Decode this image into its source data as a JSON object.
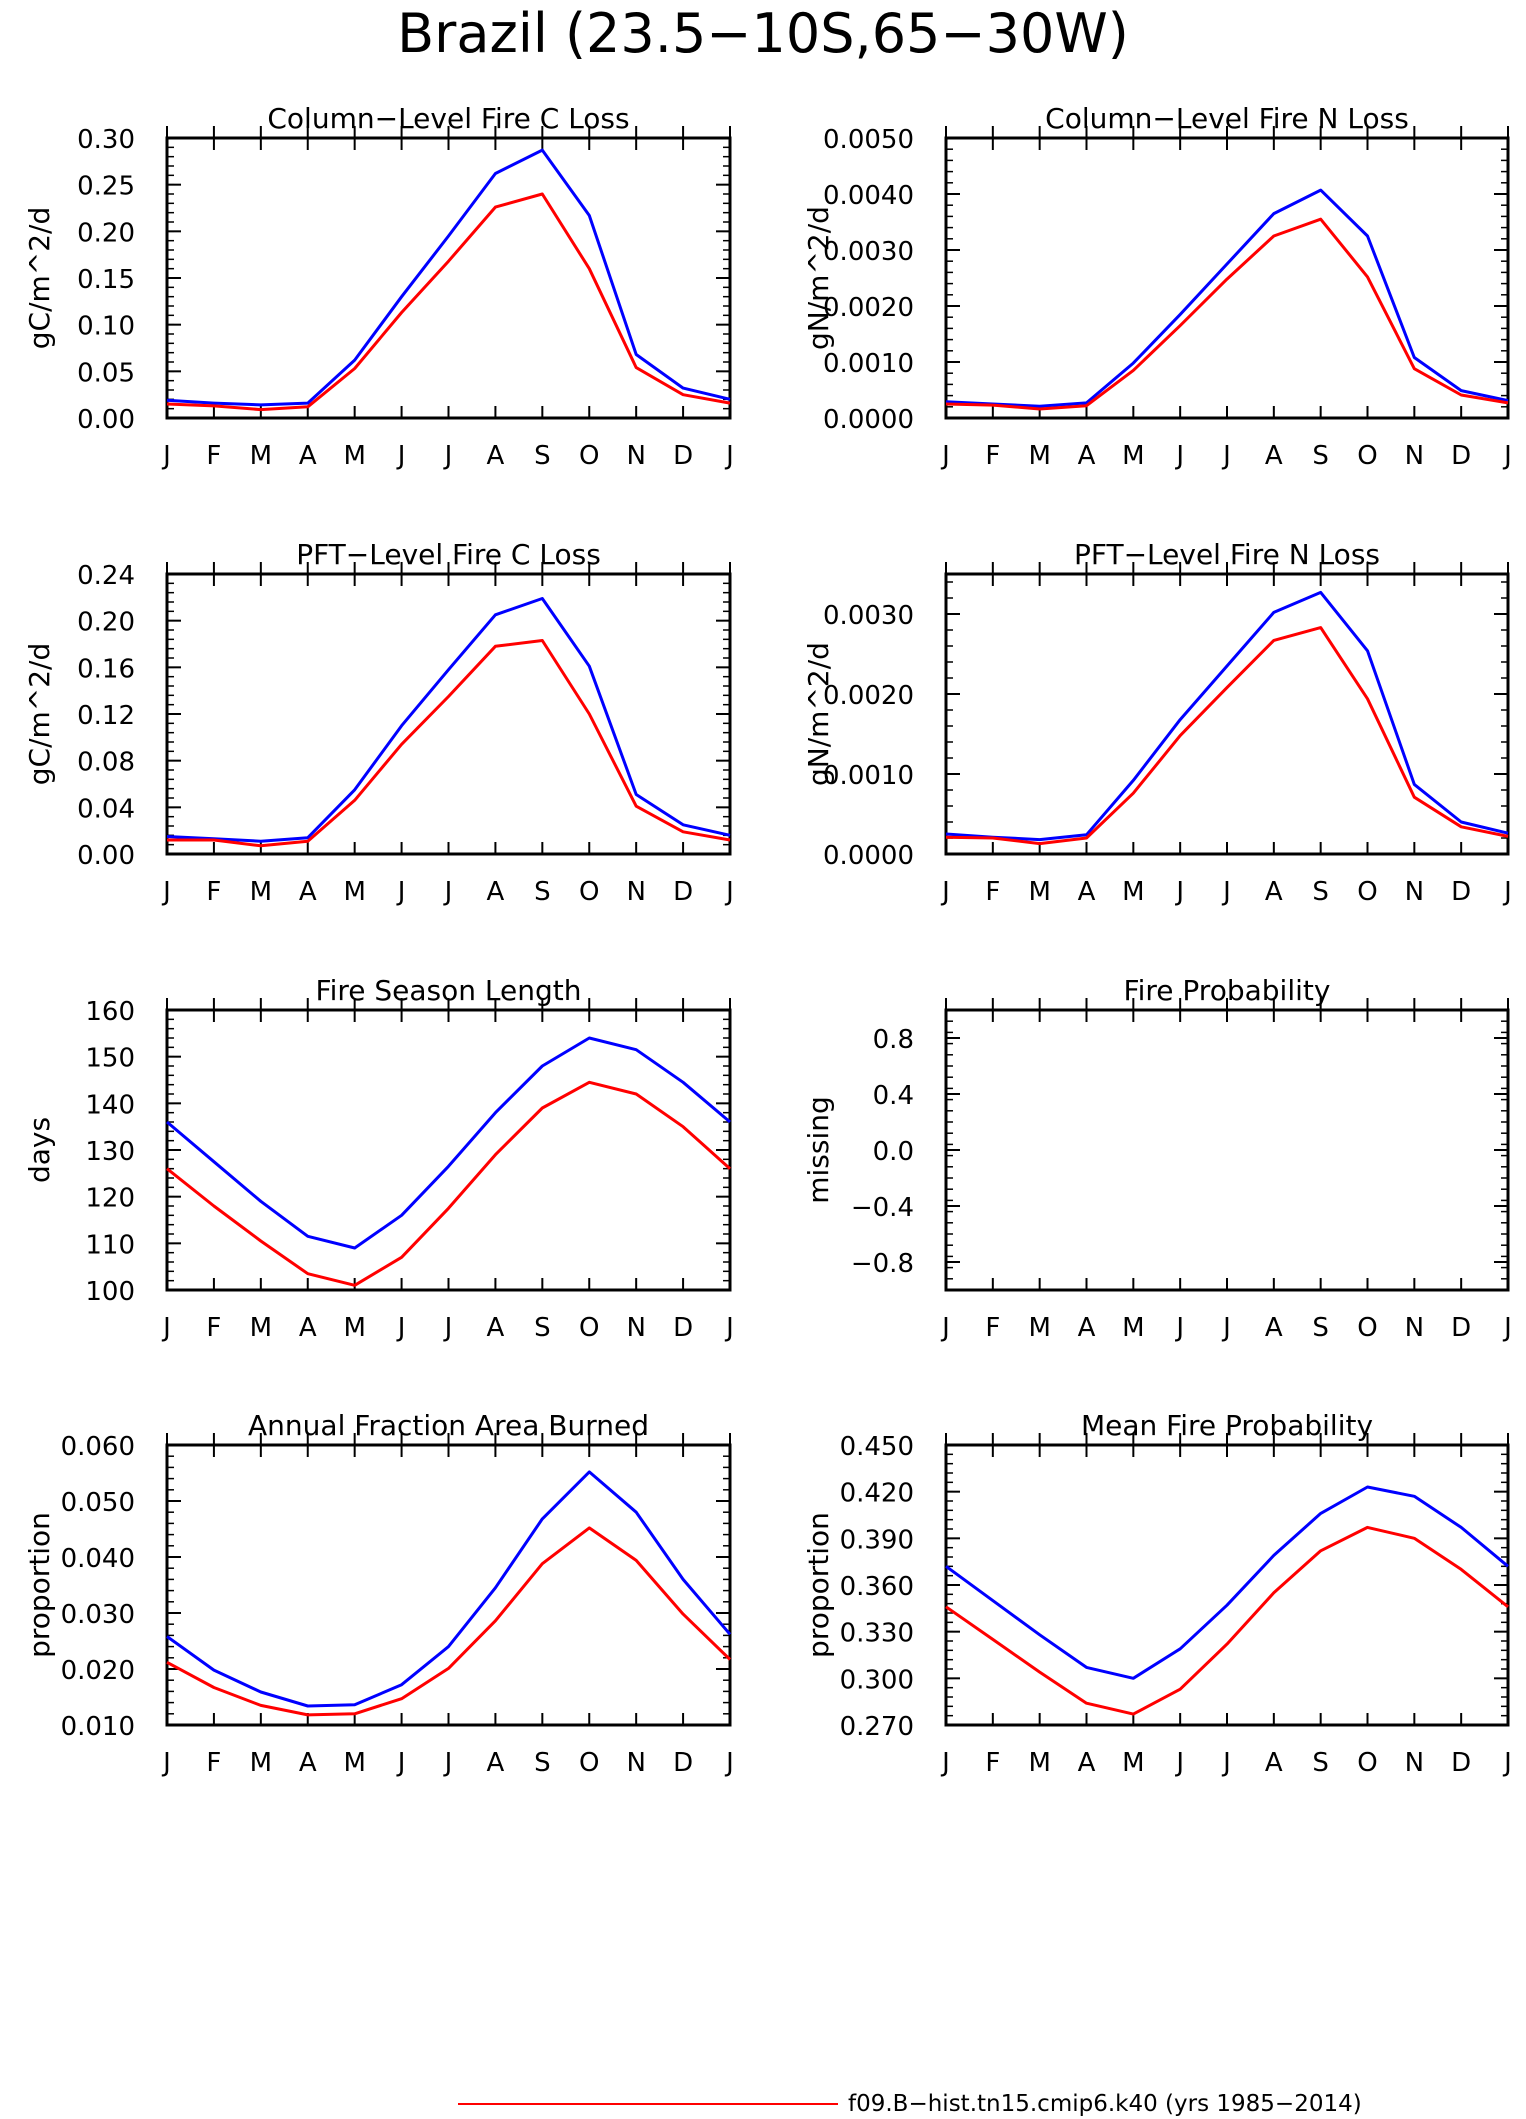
{
  "title": "Brazil (23.5−10S,65−30W)",
  "months": [
    "J",
    "F",
    "M",
    "A",
    "M",
    "J",
    "J",
    "A",
    "S",
    "O",
    "N",
    "D",
    "J"
  ],
  "colors": {
    "series_blue": "#0000ff",
    "series_red": "#ff0000",
    "axis": "#000000"
  },
  "legend": {
    "label": "f09.B−hist.tn15.cmip6.k40 (yrs 1985−2014)",
    "color": "#ff0000"
  },
  "chart_data": [
    {
      "id": "col-c",
      "type": "line",
      "title": "Column−Level Fire C Loss",
      "ylabel": "gC/m^2/d",
      "ylim": [
        0,
        0.3
      ],
      "yticks": [
        "0.00",
        "0.05",
        "0.10",
        "0.15",
        "0.20",
        "0.25",
        "0.30"
      ],
      "yticks_num": [
        0,
        0.05,
        0.1,
        0.15,
        0.2,
        0.25,
        0.3
      ],
      "series": [
        {
          "color": "#0000ff",
          "values": [
            0.019,
            0.016,
            0.014,
            0.016,
            0.062,
            0.13,
            0.195,
            0.262,
            0.287,
            0.217,
            0.068,
            0.032,
            0.02
          ]
        },
        {
          "color": "#ff0000",
          "name": "f09.B−hist.tn15.cmip6.k40 (yrs 1985−2014)",
          "values": [
            0.015,
            0.013,
            0.009,
            0.012,
            0.053,
            0.113,
            0.168,
            0.226,
            0.24,
            0.16,
            0.054,
            0.025,
            0.016
          ]
        }
      ]
    },
    {
      "id": "col-n",
      "type": "line",
      "title": "Column−Level Fire N Loss",
      "ylabel": "gN/m^2/d",
      "ylim": [
        0,
        0.005
      ],
      "yticks": [
        "0.0000",
        "0.0010",
        "0.0020",
        "0.0030",
        "0.0040",
        "0.0050"
      ],
      "yticks_num": [
        0,
        0.001,
        0.002,
        0.003,
        0.004,
        0.005
      ],
      "series": [
        {
          "color": "#0000ff",
          "values": [
            0.00029,
            0.00025,
            0.00021,
            0.00027,
            0.00098,
            0.00185,
            0.00275,
            0.00365,
            0.00407,
            0.00325,
            0.00108,
            0.00049,
            0.00031
          ]
        },
        {
          "color": "#ff0000",
          "values": [
            0.00025,
            0.00023,
            0.00016,
            0.00022,
            0.00085,
            0.00165,
            0.00248,
            0.00325,
            0.00355,
            0.00252,
            0.00088,
            0.00041,
            0.00027
          ]
        }
      ]
    },
    {
      "id": "pft-c",
      "type": "line",
      "title": "PFT−Level Fire C Loss",
      "ylabel": "gC/m^2/d",
      "ylim": [
        0,
        0.24
      ],
      "yticks": [
        "0.00",
        "0.04",
        "0.08",
        "0.12",
        "0.16",
        "0.20",
        "0.24"
      ],
      "yticks_num": [
        0,
        0.04,
        0.08,
        0.12,
        0.16,
        0.2,
        0.24
      ],
      "series": [
        {
          "color": "#0000ff",
          "values": [
            0.015,
            0.013,
            0.011,
            0.014,
            0.055,
            0.11,
            0.158,
            0.205,
            0.219,
            0.161,
            0.051,
            0.025,
            0.016
          ]
        },
        {
          "color": "#ff0000",
          "values": [
            0.012,
            0.012,
            0.007,
            0.011,
            0.046,
            0.094,
            0.135,
            0.178,
            0.183,
            0.12,
            0.041,
            0.019,
            0.012
          ]
        }
      ]
    },
    {
      "id": "pft-n",
      "type": "line",
      "title": "PFT−Level Fire N Loss",
      "ylabel": "gN/m^2/d",
      "ylim": [
        0,
        0.0035
      ],
      "yticks": [
        "0.0000",
        "0.0010",
        "0.0020",
        "0.0030"
      ],
      "yticks_num": [
        0,
        0.001,
        0.002,
        0.003
      ],
      "series": [
        {
          "color": "#0000ff",
          "values": [
            0.00025,
            0.00021,
            0.00018,
            0.00024,
            0.00092,
            0.00168,
            0.00235,
            0.00302,
            0.00327,
            0.00254,
            0.00087,
            0.0004,
            0.00026
          ]
        },
        {
          "color": "#ff0000",
          "values": [
            0.00021,
            0.0002,
            0.00013,
            0.0002,
            0.00076,
            0.00148,
            0.00208,
            0.00267,
            0.00283,
            0.00194,
            0.00071,
            0.00034,
            0.00022
          ]
        }
      ]
    },
    {
      "id": "season",
      "type": "line",
      "title": "Fire Season Length",
      "ylabel": "days",
      "ylim": [
        100,
        160
      ],
      "yticks": [
        "100",
        "110",
        "120",
        "130",
        "140",
        "150",
        "160"
      ],
      "yticks_num": [
        100,
        110,
        120,
        130,
        140,
        150,
        160
      ],
      "series": [
        {
          "color": "#0000ff",
          "values": [
            136,
            127.5,
            119,
            111.5,
            109,
            116,
            126.5,
            138,
            148,
            154,
            151.5,
            144.5,
            136
          ]
        },
        {
          "color": "#ff0000",
          "values": [
            126,
            118,
            110.5,
            103.5,
            101,
            107,
            117.5,
            129,
            139,
            144.5,
            142,
            135,
            126
          ]
        }
      ]
    },
    {
      "id": "prob",
      "type": "line",
      "title": "Fire Probability",
      "ylabel": "missing",
      "ylim": [
        -1,
        1
      ],
      "yticks": [
        "−0.8",
        "−0.4",
        "0.0",
        "0.4",
        "0.8"
      ],
      "yticks_num": [
        -0.8,
        -0.4,
        0,
        0.4,
        0.8
      ],
      "series": []
    },
    {
      "id": "afab",
      "type": "line",
      "title": "Annual Fraction Area Burned",
      "ylabel": "proportion",
      "ylim": [
        0.01,
        0.06
      ],
      "yticks": [
        "0.010",
        "0.020",
        "0.030",
        "0.040",
        "0.050",
        "0.060"
      ],
      "yticks_num": [
        0.01,
        0.02,
        0.03,
        0.04,
        0.05,
        0.06
      ],
      "series": [
        {
          "color": "#0000ff",
          "values": [
            0.0258,
            0.0198,
            0.0159,
            0.0134,
            0.0136,
            0.0172,
            0.024,
            0.0345,
            0.0468,
            0.0552,
            0.048,
            0.036,
            0.0262
          ]
        },
        {
          "color": "#ff0000",
          "values": [
            0.0212,
            0.0167,
            0.0135,
            0.0118,
            0.012,
            0.0147,
            0.0201,
            0.0286,
            0.0388,
            0.0452,
            0.0394,
            0.0298,
            0.0217
          ]
        }
      ]
    },
    {
      "id": "meanprob",
      "type": "line",
      "title": "Mean Fire Probability",
      "ylabel": "proportion",
      "ylim": [
        0.27,
        0.45
      ],
      "yticks": [
        "0.270",
        "0.300",
        "0.330",
        "0.360",
        "0.390",
        "0.420",
        "0.450"
      ],
      "yticks_num": [
        0.27,
        0.3,
        0.33,
        0.36,
        0.39,
        0.42,
        0.45
      ],
      "series": [
        {
          "color": "#0000ff",
          "values": [
            0.372,
            0.35,
            0.328,
            0.307,
            0.3,
            0.319,
            0.347,
            0.379,
            0.406,
            0.423,
            0.417,
            0.397,
            0.372
          ]
        },
        {
          "color": "#ff0000",
          "values": [
            0.346,
            0.325,
            0.304,
            0.284,
            0.277,
            0.293,
            0.322,
            0.355,
            0.382,
            0.397,
            0.39,
            0.37,
            0.346
          ]
        }
      ]
    }
  ]
}
